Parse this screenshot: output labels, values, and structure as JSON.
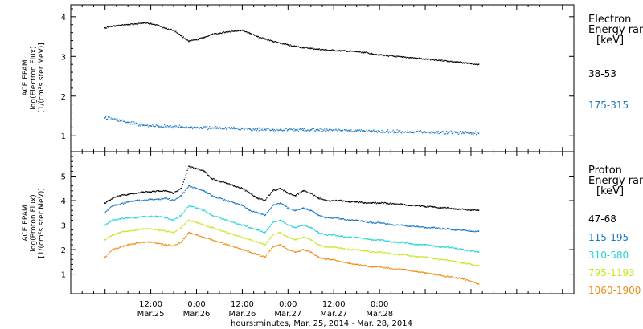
{
  "chart_data": [
    {
      "type": "scatter",
      "panel": "electron",
      "ylabel_lines": [
        "ACE EPAM",
        "log(Electron Flux)",
        "[1/(cm²s ster MeV)]"
      ],
      "ylim": [
        0.6,
        4.3
      ],
      "yticks": [
        1,
        2,
        3,
        4
      ],
      "legend_title": [
        "Electron",
        "Energy ran",
        "[keV]"
      ],
      "series": [
        {
          "name": "38-53",
          "color": "#000000",
          "x": [
            0,
            2,
            4,
            6,
            8,
            10,
            12,
            14,
            16,
            18,
            20,
            22,
            24,
            26,
            28,
            30,
            32,
            34,
            36,
            38,
            40,
            42,
            44,
            46,
            48,
            50,
            52,
            54,
            56,
            58,
            60,
            62,
            64,
            66,
            68,
            70,
            72,
            74,
            76,
            78,
            80,
            82,
            84,
            86,
            88,
            90,
            92,
            94,
            96,
            98
          ],
          "y": [
            3.72,
            3.76,
            3.78,
            3.8,
            3.82,
            3.84,
            3.83,
            3.78,
            3.7,
            3.66,
            3.52,
            3.38,
            3.42,
            3.48,
            3.55,
            3.58,
            3.62,
            3.64,
            3.66,
            3.58,
            3.5,
            3.44,
            3.38,
            3.33,
            3.29,
            3.25,
            3.22,
            3.2,
            3.18,
            3.16,
            3.15,
            3.14,
            3.13,
            3.12,
            3.1,
            3.07,
            3.04,
            3.02,
            3.0,
            2.98,
            2.97,
            2.95,
            2.93,
            2.92,
            2.9,
            2.88,
            2.86,
            2.84,
            2.82,
            2.8
          ]
        },
        {
          "name": "175-315",
          "color": "#1a78c2",
          "x": [
            0,
            2,
            4,
            6,
            8,
            10,
            12,
            14,
            16,
            18,
            20,
            22,
            24,
            26,
            28,
            30,
            32,
            34,
            36,
            38,
            40,
            42,
            44,
            46,
            48,
            50,
            52,
            54,
            56,
            58,
            60,
            62,
            64,
            66,
            68,
            70,
            72,
            74,
            76,
            78,
            80,
            82,
            84,
            86,
            88,
            90,
            92,
            94,
            96,
            98
          ],
          "y": [
            1.45,
            1.42,
            1.38,
            1.34,
            1.3,
            1.26,
            1.25,
            1.24,
            1.24,
            1.23,
            1.22,
            1.21,
            1.2,
            1.2,
            1.19,
            1.2,
            1.19,
            1.18,
            1.18,
            1.17,
            1.17,
            1.16,
            1.16,
            1.16,
            1.15,
            1.15,
            1.14,
            1.15,
            1.14,
            1.13,
            1.14,
            1.13,
            1.13,
            1.12,
            1.12,
            1.12,
            1.11,
            1.11,
            1.11,
            1.1,
            1.1,
            1.1,
            1.09,
            1.09,
            1.08,
            1.08,
            1.08,
            1.07,
            1.07,
            1.06
          ]
        }
      ]
    },
    {
      "type": "scatter",
      "panel": "proton",
      "ylabel_lines": [
        "ACE EPAM",
        "log(Proton Flux)",
        "[1/(cm²s ster MeV)]"
      ],
      "ylim": [
        0.2,
        6.0
      ],
      "yticks": [
        1,
        2,
        3,
        4,
        5
      ],
      "legend_title": [
        "Proton",
        "Energy ran",
        "[keV]"
      ],
      "series": [
        {
          "name": "47-68",
          "color": "#000000",
          "x": [
            0,
            2,
            4,
            6,
            8,
            10,
            12,
            14,
            16,
            18,
            20,
            22,
            24,
            26,
            28,
            30,
            32,
            34,
            36,
            38,
            40,
            42,
            44,
            46,
            48,
            50,
            52,
            54,
            56,
            58,
            60,
            62,
            64,
            66,
            68,
            70,
            72,
            74,
            76,
            78,
            80,
            82,
            84,
            86,
            88,
            90,
            92,
            94,
            96,
            98
          ],
          "y": [
            3.9,
            4.1,
            4.2,
            4.25,
            4.3,
            4.35,
            4.35,
            4.4,
            4.4,
            4.3,
            4.5,
            5.4,
            5.3,
            5.2,
            4.9,
            4.8,
            4.7,
            4.6,
            4.5,
            4.3,
            4.1,
            4.0,
            4.4,
            4.5,
            4.3,
            4.2,
            4.4,
            4.3,
            4.1,
            4.0,
            4.0,
            4.0,
            3.95,
            3.95,
            3.9,
            3.9,
            3.9,
            3.9,
            3.85,
            3.85,
            3.8,
            3.8,
            3.75,
            3.75,
            3.7,
            3.7,
            3.65,
            3.65,
            3.6,
            3.6
          ]
        },
        {
          "name": "115-195",
          "color": "#1a78c2",
          "x": [
            0,
            2,
            4,
            6,
            8,
            10,
            12,
            14,
            16,
            18,
            20,
            22,
            24,
            26,
            28,
            30,
            32,
            34,
            36,
            38,
            40,
            42,
            44,
            46,
            48,
            50,
            52,
            54,
            56,
            58,
            60,
            62,
            64,
            66,
            68,
            70,
            72,
            74,
            76,
            78,
            80,
            82,
            84,
            86,
            88,
            90,
            92,
            94,
            96,
            98
          ],
          "y": [
            3.5,
            3.8,
            3.85,
            3.95,
            4.0,
            4.0,
            4.05,
            4.05,
            4.1,
            4.0,
            4.2,
            4.6,
            4.5,
            4.4,
            4.2,
            4.1,
            4.0,
            3.9,
            3.8,
            3.6,
            3.5,
            3.4,
            3.8,
            3.9,
            3.7,
            3.6,
            3.7,
            3.6,
            3.4,
            3.3,
            3.3,
            3.25,
            3.2,
            3.2,
            3.15,
            3.1,
            3.1,
            3.05,
            3.0,
            3.0,
            2.95,
            2.95,
            2.9,
            2.9,
            2.85,
            2.85,
            2.8,
            2.8,
            2.75,
            2.75
          ]
        },
        {
          "name": "310-580",
          "color": "#22d3d3",
          "x": [
            0,
            2,
            4,
            6,
            8,
            10,
            12,
            14,
            16,
            18,
            20,
            22,
            24,
            26,
            28,
            30,
            32,
            34,
            36,
            38,
            40,
            42,
            44,
            46,
            48,
            50,
            52,
            54,
            56,
            58,
            60,
            62,
            64,
            66,
            68,
            70,
            72,
            74,
            76,
            78,
            80,
            82,
            84,
            86,
            88,
            90,
            92,
            94,
            96,
            98
          ],
          "y": [
            3.0,
            3.2,
            3.25,
            3.3,
            3.3,
            3.35,
            3.35,
            3.35,
            3.3,
            3.2,
            3.4,
            3.8,
            3.7,
            3.6,
            3.4,
            3.3,
            3.2,
            3.1,
            3.0,
            2.9,
            2.8,
            2.7,
            3.1,
            3.2,
            3.0,
            2.9,
            3.0,
            2.9,
            2.7,
            2.6,
            2.6,
            2.55,
            2.5,
            2.5,
            2.45,
            2.4,
            2.4,
            2.35,
            2.3,
            2.3,
            2.25,
            2.2,
            2.2,
            2.15,
            2.1,
            2.1,
            2.05,
            2.0,
            1.95,
            1.9
          ]
        },
        {
          "name": "795-1193",
          "color": "#c8e61e",
          "x": [
            0,
            2,
            4,
            6,
            8,
            10,
            12,
            14,
            16,
            18,
            20,
            22,
            24,
            26,
            28,
            30,
            32,
            34,
            36,
            38,
            40,
            42,
            44,
            46,
            48,
            50,
            52,
            54,
            56,
            58,
            60,
            62,
            64,
            66,
            68,
            70,
            72,
            74,
            76,
            78,
            80,
            82,
            84,
            86,
            88,
            90,
            92,
            94,
            96,
            98
          ],
          "y": [
            2.4,
            2.6,
            2.7,
            2.75,
            2.8,
            2.85,
            2.85,
            2.8,
            2.75,
            2.7,
            2.9,
            3.2,
            3.1,
            3.0,
            2.9,
            2.8,
            2.7,
            2.6,
            2.5,
            2.4,
            2.3,
            2.2,
            2.6,
            2.7,
            2.5,
            2.4,
            2.5,
            2.4,
            2.2,
            2.1,
            2.1,
            2.05,
            2.0,
            2.0,
            1.95,
            1.9,
            1.9,
            1.85,
            1.8,
            1.8,
            1.75,
            1.7,
            1.7,
            1.65,
            1.6,
            1.55,
            1.5,
            1.45,
            1.4,
            1.35
          ]
        },
        {
          "name": "1060-1900",
          "color": "#f08a14",
          "x": [
            0,
            2,
            4,
            6,
            8,
            10,
            12,
            14,
            16,
            18,
            20,
            22,
            24,
            26,
            28,
            30,
            32,
            34,
            36,
            38,
            40,
            42,
            44,
            46,
            48,
            50,
            52,
            54,
            56,
            58,
            60,
            62,
            64,
            66,
            68,
            70,
            72,
            74,
            76,
            78,
            80,
            82,
            84,
            86,
            88,
            90,
            92,
            94,
            96,
            98
          ],
          "y": [
            1.7,
            2.0,
            2.1,
            2.2,
            2.25,
            2.3,
            2.3,
            2.25,
            2.2,
            2.15,
            2.3,
            2.7,
            2.6,
            2.5,
            2.4,
            2.3,
            2.2,
            2.1,
            2.0,
            1.9,
            1.8,
            1.7,
            2.1,
            2.2,
            2.0,
            1.9,
            2.0,
            1.9,
            1.7,
            1.6,
            1.6,
            1.5,
            1.45,
            1.4,
            1.35,
            1.3,
            1.3,
            1.25,
            1.2,
            1.2,
            1.15,
            1.1,
            1.05,
            1.0,
            0.95,
            0.9,
            0.85,
            0.8,
            0.7,
            0.6
          ]
        }
      ]
    }
  ],
  "xaxis": {
    "xlim": [
      -9,
      123
    ],
    "major_ticks": [
      {
        "x": 12,
        "label1": "12:00",
        "label2": "Mar.25"
      },
      {
        "x": 24,
        "label1": "0:00",
        "label2": "Mar.26"
      },
      {
        "x": 36,
        "label1": "12:00",
        "label2": "Mar.26"
      },
      {
        "x": 48,
        "label1": "0:00",
        "label2": "Mar.27"
      },
      {
        "x": 60,
        "label1": "12:00",
        "label2": "Mar.27"
      },
      {
        "x": 72,
        "label1": "0:00",
        "label2": "Mar.28"
      }
    ],
    "xlabel": "hours:minutes, Mar. 25, 2014 - Mar. 28, 2014"
  }
}
